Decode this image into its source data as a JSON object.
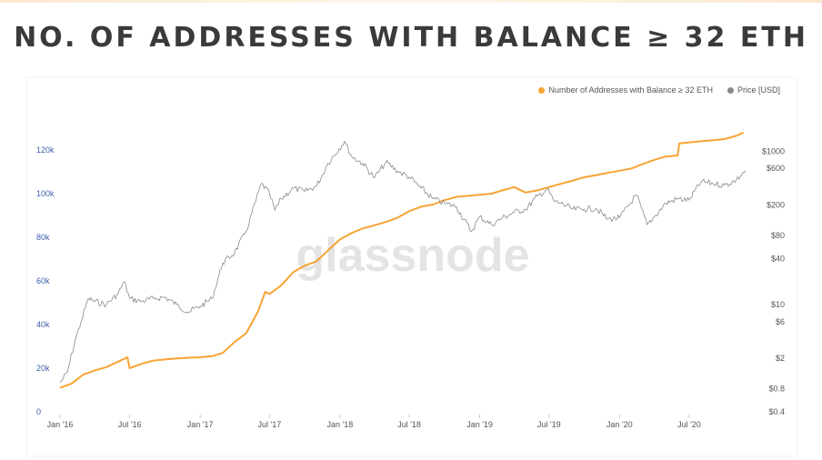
{
  "slide": {
    "title": "NO. OF ADDRESSES WITH BALANCE ≥ 32 ETH"
  },
  "colors": {
    "addresses": "#f7a434",
    "price": "#8a8a8a",
    "left_axis_text": "#3b5ea8",
    "watermark": "#e3e3e3"
  },
  "watermark": "glassnode",
  "legend": {
    "position": "top-right",
    "items": [
      {
        "label": "Number of Addresses with Balance ≥ 32 ETH",
        "color": "#f7a434"
      },
      {
        "label": "Price [USD]",
        "color": "#8a8a8a"
      }
    ]
  },
  "chart_data": {
    "type": "line",
    "grid": false,
    "x_range": [
      "2016-01-01",
      "2020-12-31"
    ],
    "x_ticks": [
      "Jan '16",
      "Jul '16",
      "Jan '17",
      "Jul '17",
      "Jan '18",
      "Jul '18",
      "Jan '19",
      "Jul '19",
      "Jan '20",
      "Jul '20"
    ],
    "y_left": {
      "range": [
        0,
        130000
      ],
      "ticks": [
        0,
        20000,
        40000,
        60000,
        80000,
        100000,
        120000
      ],
      "tick_labels": [
        "0",
        "20k",
        "40k",
        "60k",
        "80k",
        "100k",
        "120k"
      ]
    },
    "y_right": {
      "scale": "log",
      "range": [
        0.4,
        2000
      ],
      "ticks": [
        0.4,
        0.8,
        2,
        6,
        10,
        40,
        80,
        200,
        600,
        1000
      ],
      "tick_labels": [
        "$0.4",
        "$0.8",
        "$2",
        "$6",
        "$10",
        "$40",
        "$80",
        "$200",
        "$600",
        "$1000"
      ]
    },
    "series": [
      {
        "name": "Number of Addresses with Balance ≥ 32 ETH",
        "axis": "left",
        "points": [
          [
            "2016-01-01",
            11000
          ],
          [
            "2016-02-01",
            13000
          ],
          [
            "2016-03-01",
            17000
          ],
          [
            "2016-04-01",
            19000
          ],
          [
            "2016-05-01",
            20500
          ],
          [
            "2016-06-01",
            23000
          ],
          [
            "2016-06-25",
            25000
          ],
          [
            "2016-07-01",
            20000
          ],
          [
            "2016-08-01",
            22000
          ],
          [
            "2016-09-01",
            23500
          ],
          [
            "2016-10-01",
            24000
          ],
          [
            "2016-11-01",
            24500
          ],
          [
            "2016-12-01",
            24800
          ],
          [
            "2017-01-01",
            25000
          ],
          [
            "2017-02-01",
            25500
          ],
          [
            "2017-03-01",
            27000
          ],
          [
            "2017-04-01",
            32000
          ],
          [
            "2017-05-01",
            36000
          ],
          [
            "2017-06-01",
            46000
          ],
          [
            "2017-06-20",
            55000
          ],
          [
            "2017-07-01",
            54000
          ],
          [
            "2017-08-01",
            58000
          ],
          [
            "2017-09-01",
            64000
          ],
          [
            "2017-10-01",
            67000
          ],
          [
            "2017-11-01",
            69000
          ],
          [
            "2017-12-01",
            74000
          ],
          [
            "2018-01-01",
            79000
          ],
          [
            "2018-02-01",
            82000
          ],
          [
            "2018-03-01",
            84000
          ],
          [
            "2018-04-01",
            85500
          ],
          [
            "2018-05-01",
            87000
          ],
          [
            "2018-06-01",
            89000
          ],
          [
            "2018-07-01",
            92000
          ],
          [
            "2018-08-01",
            94000
          ],
          [
            "2018-09-01",
            95000
          ],
          [
            "2018-10-01",
            97000
          ],
          [
            "2018-11-01",
            98500
          ],
          [
            "2018-12-01",
            99000
          ],
          [
            "2019-01-01",
            99500
          ],
          [
            "2019-02-01",
            100000
          ],
          [
            "2019-03-01",
            101500
          ],
          [
            "2019-04-01",
            103000
          ],
          [
            "2019-05-01",
            100500
          ],
          [
            "2019-06-01",
            101500
          ],
          [
            "2019-07-01",
            103000
          ],
          [
            "2019-08-01",
            104500
          ],
          [
            "2019-09-01",
            106000
          ],
          [
            "2019-10-01",
            107500
          ],
          [
            "2019-11-01",
            108500
          ],
          [
            "2019-12-01",
            109500
          ],
          [
            "2020-01-01",
            110500
          ],
          [
            "2020-02-01",
            111500
          ],
          [
            "2020-03-01",
            113500
          ],
          [
            "2020-04-01",
            115500
          ],
          [
            "2020-05-01",
            117000
          ],
          [
            "2020-06-01",
            117500
          ],
          [
            "2020-06-05",
            123000
          ],
          [
            "2020-07-01",
            123500
          ],
          [
            "2020-08-01",
            124000
          ],
          [
            "2020-09-01",
            124500
          ],
          [
            "2020-10-01",
            125000
          ],
          [
            "2020-11-01",
            126500
          ],
          [
            "2020-11-20",
            128000
          ]
        ]
      },
      {
        "name": "Price [USD]",
        "axis": "right",
        "points": [
          [
            "2016-01-01",
            0.95
          ],
          [
            "2016-01-20",
            1.3
          ],
          [
            "2016-02-10",
            3.5
          ],
          [
            "2016-02-25",
            6
          ],
          [
            "2016-03-15",
            12
          ],
          [
            "2016-04-01",
            11
          ],
          [
            "2016-05-01",
            10
          ],
          [
            "2016-06-01",
            14
          ],
          [
            "2016-06-17",
            20
          ],
          [
            "2016-07-01",
            12
          ],
          [
            "2016-08-01",
            11
          ],
          [
            "2016-09-01",
            12
          ],
          [
            "2016-10-01",
            12.5
          ],
          [
            "2016-11-01",
            10
          ],
          [
            "2016-12-01",
            8
          ],
          [
            "2017-01-01",
            9.5
          ],
          [
            "2017-02-01",
            12
          ],
          [
            "2017-03-01",
            35
          ],
          [
            "2017-04-01",
            48
          ],
          [
            "2017-05-01",
            90
          ],
          [
            "2017-06-10",
            380
          ],
          [
            "2017-07-01",
            280
          ],
          [
            "2017-07-15",
            170
          ],
          [
            "2017-08-01",
            240
          ],
          [
            "2017-09-01",
            330
          ],
          [
            "2017-10-01",
            300
          ],
          [
            "2017-11-01",
            350
          ],
          [
            "2017-12-01",
            700
          ],
          [
            "2018-01-13",
            1350
          ],
          [
            "2018-02-01",
            850
          ],
          [
            "2018-03-01",
            700
          ],
          [
            "2018-04-01",
            450
          ],
          [
            "2018-05-01",
            720
          ],
          [
            "2018-06-01",
            550
          ],
          [
            "2018-07-01",
            460
          ],
          [
            "2018-08-01",
            330
          ],
          [
            "2018-09-01",
            240
          ],
          [
            "2018-10-01",
            210
          ],
          [
            "2018-11-01",
            190
          ],
          [
            "2018-12-10",
            90
          ],
          [
            "2019-01-01",
            140
          ],
          [
            "2019-02-01",
            110
          ],
          [
            "2019-03-01",
            135
          ],
          [
            "2019-04-01",
            160
          ],
          [
            "2019-05-01",
            175
          ],
          [
            "2019-06-01",
            260
          ],
          [
            "2019-06-26",
            320
          ],
          [
            "2019-07-15",
            220
          ],
          [
            "2019-08-01",
            210
          ],
          [
            "2019-09-01",
            175
          ],
          [
            "2019-10-01",
            175
          ],
          [
            "2019-11-01",
            180
          ],
          [
            "2019-12-01",
            130
          ],
          [
            "2020-01-01",
            135
          ],
          [
            "2020-02-14",
            270
          ],
          [
            "2020-03-13",
            110
          ],
          [
            "2020-04-01",
            140
          ],
          [
            "2020-05-01",
            210
          ],
          [
            "2020-06-01",
            240
          ],
          [
            "2020-07-01",
            230
          ],
          [
            "2020-08-01",
            400
          ],
          [
            "2020-09-01",
            380
          ],
          [
            "2020-10-01",
            360
          ],
          [
            "2020-11-01",
            420
          ],
          [
            "2020-11-25",
            560
          ]
        ]
      }
    ]
  }
}
